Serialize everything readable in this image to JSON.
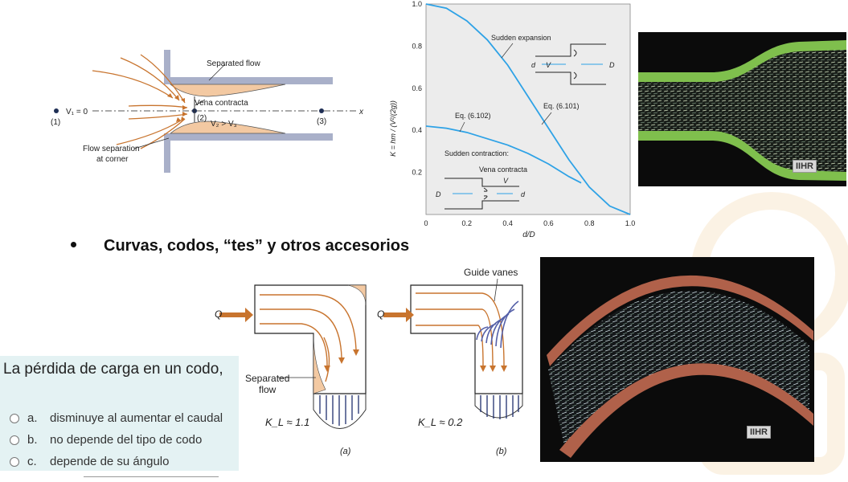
{
  "colors": {
    "curve": "#2ea2e6",
    "flow_arrow": "#c8742e",
    "fluid_fill": "#f3c9a2",
    "pipe_wall": "#a9b0c9",
    "quiz_bg": "#e4f2f3",
    "photo_green": "#7fbf4d",
    "photo_pipe": "#b0614a"
  },
  "contraction_diagram": {
    "separated_flow": "Separated flow",
    "vena_contracta": "Vena contracta",
    "v1": "V₁ = 0",
    "p1": "(1)",
    "p2": "(2)",
    "p3": "(3)",
    "v2v3": "V₂ > V₃",
    "x": "x",
    "flow_sep": "Flow separation",
    "at_corner": "at corner"
  },
  "chart_data": {
    "type": "line",
    "xlabel": "d/D",
    "ylabel": "K = hm / (V²/(2g))",
    "xlim": [
      0,
      1.0
    ],
    "ylim": [
      0,
      1.0
    ],
    "x_ticks": [
      "0",
      "0.2",
      "0.4",
      "0.6",
      "0.8",
      "1.0"
    ],
    "y_ticks": [
      "0.2",
      "0.4",
      "0.6",
      "0.8",
      "1.0"
    ],
    "series": [
      {
        "name": "Sudden expansion",
        "eq": "Eq. (6.101)",
        "x": [
          0,
          0.1,
          0.2,
          0.3,
          0.4,
          0.5,
          0.6,
          0.7,
          0.8,
          0.9,
          1.0
        ],
        "y": [
          1.0,
          0.98,
          0.92,
          0.83,
          0.71,
          0.56,
          0.41,
          0.26,
          0.13,
          0.04,
          0.0
        ]
      },
      {
        "name": "Sudden contraction:",
        "eq": "Eq. (6.102)",
        "x": [
          0,
          0.1,
          0.2,
          0.3,
          0.4,
          0.5,
          0.6,
          0.7,
          0.76
        ],
        "y": [
          0.42,
          0.41,
          0.39,
          0.36,
          0.33,
          0.29,
          0.24,
          0.18,
          0.15
        ]
      }
    ],
    "annotations": {
      "vena_contracta": "Vena contracta",
      "V": "V",
      "d": "d",
      "D": "D"
    }
  },
  "bullet": {
    "text": "Curvas, codos, “tes” y otros accesorios"
  },
  "elbow_diagram": {
    "Q": "Q",
    "guide_vanes": "Guide vanes",
    "separated": "Separated",
    "flow": "flow",
    "kl_a": "K_L ≈ 1.1",
    "kl_b": "K_L ≈ 0.2",
    "label_a": "(a)",
    "label_b": "(b)"
  },
  "photo_badge": "IIHR",
  "quiz": {
    "question": "La pérdida de carga en un codo,",
    "options": [
      {
        "letter": "a.",
        "text": "disminuye al aumentar el caudal"
      },
      {
        "letter": "b.",
        "text": "no depende del tipo de codo"
      },
      {
        "letter": "c.",
        "text": "depende de su ángulo"
      }
    ]
  }
}
